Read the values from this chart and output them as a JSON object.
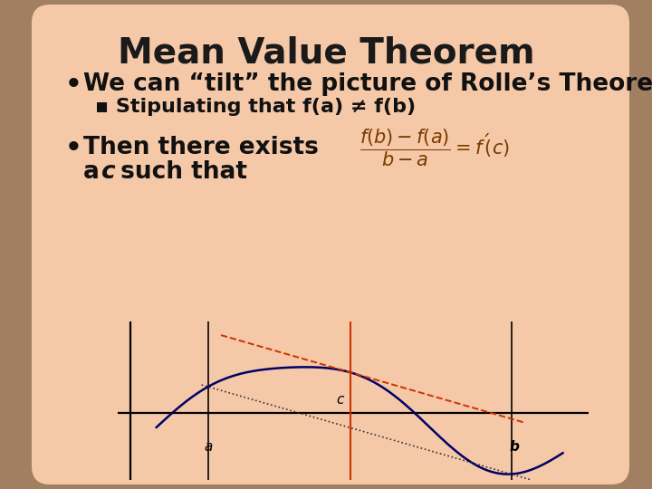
{
  "title": "Mean Value Theorem",
  "bullet1": "We can “tilt” the picture of Rolle’s Theorem",
  "subbullet1": "▪ Stipulating that f(a) ≠ f(b)",
  "bullet2_line1": "Then there exists",
  "bullet2_line2": "a  c such that",
  "bg_color_outer": "#a08060",
  "bg_color_card": "#f5c8a8",
  "title_color": "#1a1a1a",
  "text_color": "#111111",
  "curve_color": "#000080",
  "secant_dot_color": "#555555",
  "tangent_dash_color": "#cc3300",
  "vline_c_color": "#cc3300",
  "title_fontsize": 28,
  "bullet_fontsize": 19,
  "sub_fontsize": 16,
  "formula_color": "#7a3a00"
}
